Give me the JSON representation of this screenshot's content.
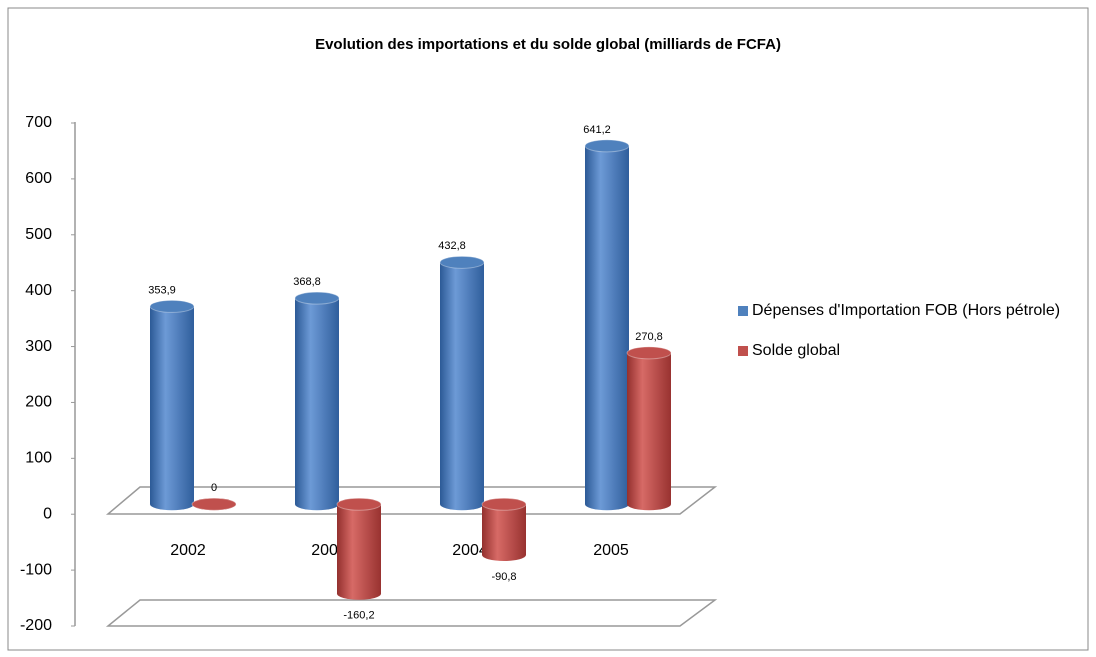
{
  "chart_data": {
    "type": "bar",
    "title": "Evolution des importations et du solde global (milliards de FCFA)",
    "categories": [
      "2002",
      "2003",
      "2004",
      "2005"
    ],
    "series": [
      {
        "name": "Dépenses d'Importation FOB (Hors pétrole)",
        "color": "#4f81bd",
        "values": [
          353.9,
          368.8,
          432.8,
          641.2
        ],
        "value_labels": [
          "353,9",
          "368,8",
          "432,8",
          "641,2"
        ]
      },
      {
        "name": "Solde global",
        "color": "#c0504d",
        "values": [
          0,
          -160.2,
          -90.8,
          270.8
        ],
        "value_labels": [
          "0",
          "-160,2",
          "-90,8",
          "270,8"
        ]
      }
    ],
    "ylim": [
      -200,
      700
    ],
    "yticks": [
      -200,
      -100,
      0,
      100,
      200,
      300,
      400,
      500,
      600,
      700
    ],
    "grid": false,
    "legend": "right"
  }
}
